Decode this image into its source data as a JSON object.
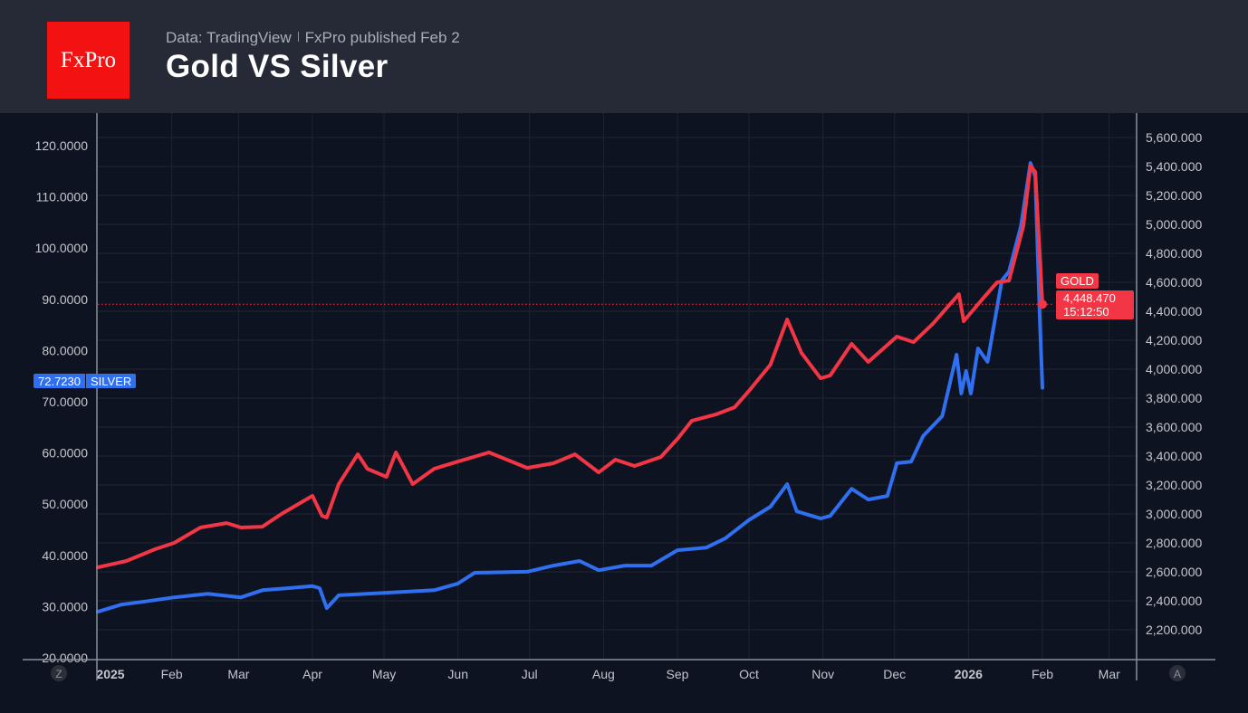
{
  "header": {
    "logo_text": "FxPro",
    "source": "Data: TradingView",
    "published": "FxPro published Feb 2",
    "title": "Gold VS Silver"
  },
  "controls": {
    "left_button": "Z",
    "right_button": "A"
  },
  "chart_data": {
    "type": "line",
    "title": "Gold VS Silver",
    "x_type": "date",
    "xlim": [
      "2025-01-01",
      "2026-03-10"
    ],
    "x_tick_labels": [
      {
        "date": "2025-01-01",
        "label": "2025"
      },
      {
        "date": "2025-02-01",
        "label": "Feb"
      },
      {
        "date": "2025-03-01",
        "label": "Mar"
      },
      {
        "date": "2025-04-01",
        "label": "Apr"
      },
      {
        "date": "2025-05-01",
        "label": "May"
      },
      {
        "date": "2025-06-01",
        "label": "Jun"
      },
      {
        "date": "2025-07-01",
        "label": "Jul"
      },
      {
        "date": "2025-08-01",
        "label": "Aug"
      },
      {
        "date": "2025-09-01",
        "label": "Sep"
      },
      {
        "date": "2025-10-01",
        "label": "Oct"
      },
      {
        "date": "2025-11-01",
        "label": "Nov"
      },
      {
        "date": "2025-12-01",
        "label": "Dec"
      },
      {
        "date": "2026-01-01",
        "label": "2026"
      },
      {
        "date": "2026-02-01",
        "label": "Feb"
      },
      {
        "date": "2026-03-01",
        "label": "Mar"
      }
    ],
    "left_axis": {
      "ylim": [
        20,
        120
      ],
      "ticks": [
        20,
        30,
        40,
        50,
        60,
        70,
        80,
        90,
        100,
        110,
        120
      ],
      "decimals": 4
    },
    "right_axis": {
      "ylim": [
        2200,
        5600
      ],
      "ticks": [
        2200,
        2400,
        2600,
        2800,
        3000,
        3200,
        3400,
        3600,
        3800,
        4000,
        4200,
        4400,
        4600,
        4800,
        5000,
        5200,
        5400,
        5600
      ],
      "decimals": 3
    },
    "grid": true,
    "series": [
      {
        "name": "SILVER",
        "axis": "left",
        "color": "#2f6ff0",
        "last_value": "72.7230",
        "points": [
          [
            "2025-01-01",
            29.0
          ],
          [
            "2025-01-11",
            30.4
          ],
          [
            "2025-01-21",
            31.0
          ],
          [
            "2025-02-02",
            31.8
          ],
          [
            "2025-02-16",
            32.5
          ],
          [
            "2025-03-02",
            31.8
          ],
          [
            "2025-03-11",
            33.2
          ],
          [
            "2025-03-22",
            33.6
          ],
          [
            "2025-04-01",
            34.0
          ],
          [
            "2025-04-04",
            33.6
          ],
          [
            "2025-04-07",
            29.7
          ],
          [
            "2025-04-12",
            32.2
          ],
          [
            "2025-05-02",
            32.7
          ],
          [
            "2025-05-22",
            33.2
          ],
          [
            "2025-06-01",
            34.5
          ],
          [
            "2025-06-08",
            36.6
          ],
          [
            "2025-06-30",
            36.8
          ],
          [
            "2025-07-11",
            38.0
          ],
          [
            "2025-07-22",
            38.9
          ],
          [
            "2025-07-30",
            37.1
          ],
          [
            "2025-08-10",
            38.0
          ],
          [
            "2025-08-21",
            38.0
          ],
          [
            "2025-09-01",
            41.0
          ],
          [
            "2025-09-13",
            41.5
          ],
          [
            "2025-09-21",
            43.3
          ],
          [
            "2025-10-01",
            46.9
          ],
          [
            "2025-10-10",
            49.5
          ],
          [
            "2025-10-17",
            53.9
          ],
          [
            "2025-10-21",
            48.6
          ],
          [
            "2025-10-31",
            47.2
          ],
          [
            "2025-11-04",
            47.7
          ],
          [
            "2025-11-13",
            53.0
          ],
          [
            "2025-11-20",
            50.9
          ],
          [
            "2025-11-28",
            51.6
          ],
          [
            "2025-12-02",
            58.0
          ],
          [
            "2025-12-08",
            58.3
          ],
          [
            "2025-12-13",
            63.3
          ],
          [
            "2025-12-21",
            67.2
          ],
          [
            "2025-12-27",
            79.2
          ],
          [
            "2025-12-29",
            71.6
          ],
          [
            "2025-12-31",
            76.0
          ],
          [
            "2026-01-02",
            71.6
          ],
          [
            "2026-01-05",
            80.4
          ],
          [
            "2026-01-09",
            77.8
          ],
          [
            "2026-01-15",
            93.7
          ],
          [
            "2026-01-18",
            95.4
          ],
          [
            "2026-01-23",
            104.3
          ],
          [
            "2026-01-27",
            116.6
          ],
          [
            "2026-01-29",
            114.0
          ],
          [
            "2026-01-31",
            84.8
          ],
          [
            "2026-02-01",
            72.723
          ]
        ]
      },
      {
        "name": "GOLD",
        "axis": "right",
        "color": "#f23645",
        "last_value": "4,448.470",
        "countdown": "15:12:50",
        "points": [
          [
            "2025-01-01",
            2631
          ],
          [
            "2025-01-13",
            2675
          ],
          [
            "2025-01-25",
            2756
          ],
          [
            "2025-02-02",
            2800
          ],
          [
            "2025-02-13",
            2906
          ],
          [
            "2025-02-24",
            2937
          ],
          [
            "2025-03-02",
            2906
          ],
          [
            "2025-03-11",
            2912
          ],
          [
            "2025-03-19",
            3000
          ],
          [
            "2025-04-01",
            3125
          ],
          [
            "2025-04-05",
            2987
          ],
          [
            "2025-04-07",
            2975
          ],
          [
            "2025-04-12",
            3206
          ],
          [
            "2025-04-20",
            3412
          ],
          [
            "2025-04-24",
            3312
          ],
          [
            "2025-05-02",
            3256
          ],
          [
            "2025-05-06",
            3425
          ],
          [
            "2025-05-13",
            3206
          ],
          [
            "2025-05-22",
            3312
          ],
          [
            "2025-06-01",
            3362
          ],
          [
            "2025-06-14",
            3425
          ],
          [
            "2025-06-30",
            3318
          ],
          [
            "2025-07-11",
            3350
          ],
          [
            "2025-07-20",
            3412
          ],
          [
            "2025-07-30",
            3287
          ],
          [
            "2025-08-06",
            3375
          ],
          [
            "2025-08-14",
            3331
          ],
          [
            "2025-08-25",
            3393
          ],
          [
            "2025-09-01",
            3518
          ],
          [
            "2025-09-07",
            3643
          ],
          [
            "2025-09-17",
            3687
          ],
          [
            "2025-09-25",
            3737
          ],
          [
            "2025-10-01",
            3850
          ],
          [
            "2025-10-10",
            4031
          ],
          [
            "2025-10-17",
            4343
          ],
          [
            "2025-10-23",
            4112
          ],
          [
            "2025-10-31",
            3937
          ],
          [
            "2025-11-04",
            3956
          ],
          [
            "2025-11-13",
            4175
          ],
          [
            "2025-11-20",
            4050
          ],
          [
            "2025-12-02",
            4225
          ],
          [
            "2025-12-09",
            4187
          ],
          [
            "2025-12-17",
            4312
          ],
          [
            "2025-12-28",
            4518
          ],
          [
            "2025-12-30",
            4331
          ],
          [
            "2026-01-07",
            4487
          ],
          [
            "2026-01-13",
            4600
          ],
          [
            "2026-01-18",
            4612
          ],
          [
            "2026-01-24",
            4987
          ],
          [
            "2026-01-27",
            5406
          ],
          [
            "2026-01-29",
            5362
          ],
          [
            "2026-02-01",
            4448.47
          ]
        ]
      }
    ]
  }
}
